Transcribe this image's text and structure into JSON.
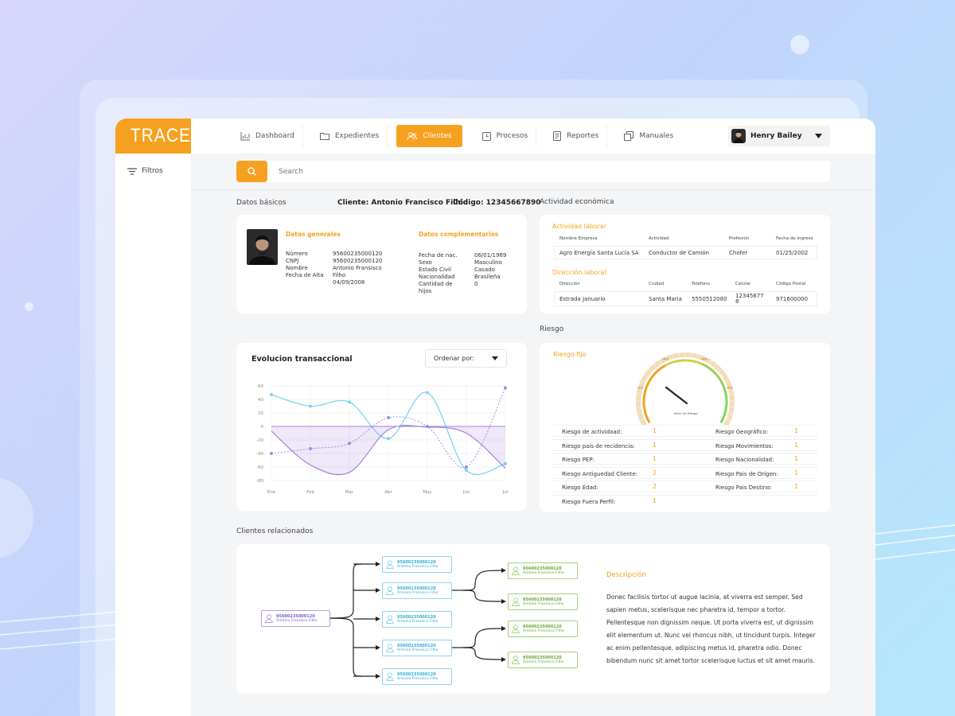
{
  "brand": {
    "name": "TRACE"
  },
  "nav": {
    "items": [
      {
        "label": "Dashboard",
        "icon": "bar-chart-icon"
      },
      {
        "label": "Expedientes",
        "icon": "folder-icon"
      },
      {
        "label": "Clientes",
        "icon": "users-icon",
        "active": true
      },
      {
        "label": "Procesos",
        "icon": "clock-icon"
      },
      {
        "label": "Reportes",
        "icon": "document-icon"
      },
      {
        "label": "Manuales",
        "icon": "copy-icon"
      }
    ]
  },
  "user": {
    "name": "Henry Bailey"
  },
  "sidebar": {
    "filters_label": "Filtros"
  },
  "search": {
    "placeholder": "Search"
  },
  "basic": {
    "title": "Datos básicos",
    "client_line": "Cliente: Antonio Francisco Filhio",
    "code_line": "Código: 12345667890",
    "general_title": "Datos generales",
    "general_labels": [
      "Número",
      "CNPJ",
      "Nombre",
      "Fecha de Alta"
    ],
    "general_values": [
      "95600235000120",
      "95600235000120",
      "Antonio Fransisco",
      "Filho",
      "04/09/2008"
    ],
    "comp_title": "Datos complementarios",
    "comp_labels": [
      "Fecha de nac.",
      "Sexo",
      "Estado Civil",
      "Nacionalidad",
      "Cantidad de",
      "hijos"
    ],
    "comp_values": [
      "06/01/1969",
      "Masculino",
      "Casado",
      "Brasileña",
      "0"
    ]
  },
  "economic": {
    "title": "Actividad económica",
    "work_title": "Actividad laboral",
    "work_headers": [
      "Nombre Empresa",
      "Actividad",
      "Profesión",
      "Fecha de ingreso"
    ],
    "work_row": [
      "Agro Energía Santa Lucía SA",
      "Conductor de Camión",
      "Chofer",
      "01/25/2002"
    ],
    "addr_title": "Dirección laboral",
    "addr_headers": [
      "Dirección",
      "Ciudad",
      "Teléfono",
      "Celular",
      "Código Postal"
    ],
    "addr_row": [
      "Estrada Januario",
      "Santa Maria",
      "5550512080",
      "12345677",
      "8",
      "971600000"
    ]
  },
  "transactions": {
    "title": "Evolucion transaccional",
    "sort_label": "Ordenar por:"
  },
  "chart_data": {
    "type": "line",
    "title": "Evolucion transaccional",
    "categories": [
      "Ene",
      "Feb",
      "Mar",
      "Abr",
      "May",
      "Jun",
      "Jul"
    ],
    "yticks": [
      60,
      40,
      20,
      0,
      -20,
      -40,
      -60,
      -80
    ],
    "ylim": [
      -80,
      60
    ],
    "series": [
      {
        "values": [
          47,
          30,
          36,
          -18,
          50,
          -65,
          -55
        ],
        "color": "#7fd3ef",
        "style": "solid"
      },
      {
        "values": [
          -40,
          -33,
          -25,
          13,
          0,
          -60,
          57
        ],
        "color": "#8d98d9",
        "style": "dashed"
      },
      {
        "values": [
          -7,
          -57,
          -68,
          -5,
          -1,
          -10,
          -62
        ],
        "color": "#a87fe0",
        "style": "area"
      }
    ]
  },
  "risk": {
    "section_title": "Riesgo",
    "card_title": "Riesgo fijo",
    "gauge_label": "Nivel de Riesgo",
    "gauge_scale": [
      "20%",
      "40%",
      "60%",
      "80%"
    ],
    "gauge_value": 0.28,
    "left": [
      {
        "label": "Riesgo de actividaad:",
        "value": "1"
      },
      {
        "label": "Riesgo país de recidencia:",
        "value": "1"
      },
      {
        "label": "Riesgo PEP:",
        "value": "1"
      },
      {
        "label": "Riesgo Antiguedad Cliente:",
        "value": "2"
      },
      {
        "label": "Riesgo Edad:",
        "value": "2"
      },
      {
        "label": "Riesgo Fuera Perfil:",
        "value": "1"
      }
    ],
    "right": [
      {
        "label": "Riesgo Geográfico:",
        "value": "1"
      },
      {
        "label": "Riesgo Movimientos:",
        "value": "1"
      },
      {
        "label": "Riesgo Nacionalidad:",
        "value": "1"
      },
      {
        "label": "Riesgo Pais de Origen:",
        "value": "1"
      },
      {
        "label": "Riesgo Pais Destino:",
        "value": "1"
      }
    ]
  },
  "related": {
    "title": "Clientes relacionados",
    "node_id": "95600235000120",
    "node_name": "Antonio Fransisco Filho",
    "desc_title": "Descripción",
    "desc_lines": [
      "Donec facilisis tortor ut augue lacinia, at viverra est semper. Sed",
      "sapien metus, scelerisque nec pharetra id, tempor a tortor.",
      "Pellentesque non dignissim neque. Ut porta viverra est, ut dignissim",
      "elit elementum ut. Nunc vel rhoncus nibh, ut tincidunt turpis. Integer",
      "ac enim pellentesque, adipiscing metus id, pharetra odio. Donec",
      "bibendum nunc sit amet tortor scelerisque luctus et sit amet mauris."
    ]
  },
  "colors": {
    "accent": "#f5a11f",
    "purple": "#a87fe0",
    "cyan": "#7fd3ef",
    "green": "#9ccd5c"
  }
}
